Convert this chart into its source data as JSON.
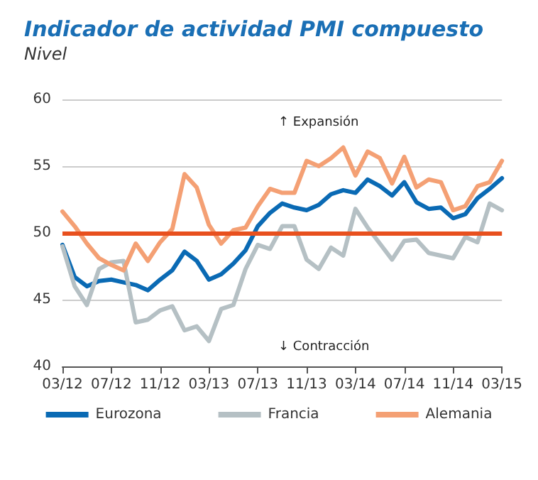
{
  "chart_data": {
    "type": "line",
    "title": "Indicador de actividad PMI compuesto",
    "subtitle": "Nivel",
    "categories": [
      "03/12",
      null,
      null,
      null,
      "07/12",
      null,
      null,
      null,
      "11/12",
      null,
      null,
      null,
      "03/13",
      null,
      null,
      null,
      "07/13",
      null,
      null,
      null,
      "11/13",
      null,
      null,
      null,
      "03/14",
      null,
      null,
      null,
      "07/14",
      null,
      null,
      null,
      "11/14",
      null,
      null,
      null,
      "03/15"
    ],
    "series": [
      {
        "name": "Eurozona",
        "color": "#0a6ab4",
        "values": [
          49.1,
          46.7,
          46.0,
          46.4,
          46.5,
          46.3,
          46.1,
          45.7,
          46.5,
          47.2,
          48.6,
          47.9,
          46.5,
          46.9,
          47.7,
          48.7,
          50.5,
          51.5,
          52.2,
          51.9,
          51.7,
          52.1,
          52.9,
          53.2,
          53.0,
          54.0,
          53.5,
          52.8,
          53.8,
          52.3,
          51.8,
          51.9,
          51.1,
          51.4,
          52.6,
          53.3,
          54.1
        ]
      },
      {
        "name": "Francia",
        "color": "#b5c0c4",
        "values": [
          49.0,
          46.0,
          44.6,
          47.3,
          47.8,
          47.9,
          43.3,
          43.5,
          44.2,
          44.5,
          42.7,
          43.0,
          41.9,
          44.3,
          44.6,
          47.3,
          49.1,
          48.8,
          50.5,
          50.5,
          48.0,
          47.3,
          48.9,
          48.3,
          51.8,
          50.4,
          49.2,
          48.0,
          49.4,
          49.5,
          48.5,
          48.3,
          48.1,
          49.7,
          49.3,
          52.2,
          51.7
        ]
      },
      {
        "name": "Alemania",
        "color": "#f4a074",
        "values": [
          51.6,
          50.5,
          49.2,
          48.1,
          47.6,
          47.2,
          49.2,
          47.9,
          49.3,
          50.3,
          54.4,
          53.4,
          50.6,
          49.2,
          50.2,
          50.4,
          52.0,
          53.3,
          53.0,
          53.0,
          55.4,
          55.0,
          55.6,
          56.4,
          54.3,
          56.1,
          55.6,
          53.7,
          55.7,
          53.4,
          54.0,
          53.8,
          51.7,
          52.0,
          53.5,
          53.8,
          55.4
        ]
      }
    ],
    "ylim": [
      40,
      60
    ],
    "yticks": [
      40,
      45,
      50,
      55,
      60
    ],
    "grid": "y",
    "legend": "bottom",
    "marker": "none",
    "line_style": "solid",
    "ref_lines": [
      {
        "axis": "y",
        "value": 50,
        "color": "#e8501e",
        "line_style": "solid"
      }
    ],
    "annotations": [
      "↑ Expansión",
      "↓ Contracción"
    ]
  }
}
